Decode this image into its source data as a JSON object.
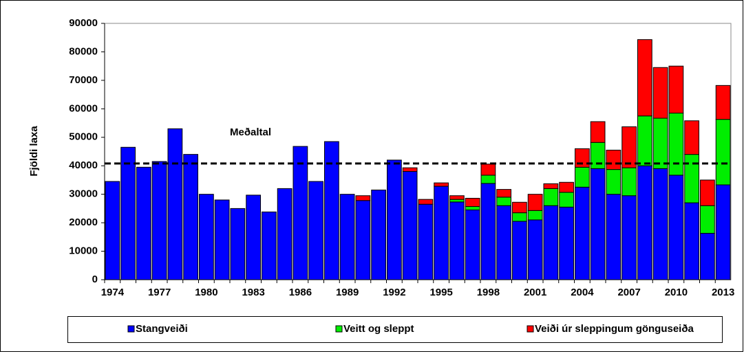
{
  "chart_data": {
    "type": "stacked_bar",
    "y_label": "Fjöldi  laxa",
    "categories": [
      "1974",
      null,
      null,
      "1977",
      null,
      null,
      "1980",
      null,
      null,
      "1983",
      null,
      null,
      "1986",
      null,
      null,
      "1989",
      null,
      null,
      "1992",
      null,
      null,
      "1995",
      null,
      null,
      "1998",
      null,
      null,
      "2001",
      null,
      null,
      "2004",
      null,
      null,
      "2007",
      null,
      null,
      "2010",
      null,
      null,
      "2013"
    ],
    "series": [
      {
        "name": "Stangveiði",
        "color": "#0000ff",
        "values": [
          34500,
          46500,
          39500,
          41500,
          53000,
          44000,
          30000,
          28000,
          25000,
          29700,
          23800,
          32000,
          46800,
          34500,
          48500,
          30000,
          27800,
          31500,
          42000,
          38000,
          26500,
          32800,
          27300,
          24500,
          33800,
          26000,
          20500,
          21000,
          26000,
          25500,
          32500,
          39000,
          30000,
          29500,
          40000,
          39000,
          36700,
          27000,
          16300,
          33300
        ]
      },
      {
        "name": "Veitt og sleppt",
        "color": "#00ee00",
        "values": [
          0,
          0,
          0,
          0,
          0,
          0,
          0,
          0,
          0,
          0,
          0,
          0,
          0,
          0,
          0,
          0,
          0,
          0,
          0,
          0,
          0,
          0,
          900,
          1200,
          2900,
          3000,
          3000,
          3300,
          6000,
          5200,
          7000,
          9200,
          8700,
          9800,
          17500,
          17700,
          21800,
          17000,
          9700,
          23000
        ]
      },
      {
        "name": "Veiði úr sleppingum gönguseiða",
        "color": "#ff0000",
        "values": [
          0,
          0,
          0,
          0,
          0,
          0,
          0,
          0,
          0,
          0,
          0,
          0,
          0,
          0,
          0,
          0,
          1700,
          0,
          0,
          1300,
          1700,
          1200,
          1300,
          2900,
          3900,
          2700,
          3700,
          5700,
          1700,
          3500,
          6500,
          7300,
          6800,
          14400,
          26800,
          17800,
          16500,
          11800,
          9000,
          11900
        ]
      }
    ],
    "ylim": [
      0,
      90000
    ],
    "yticks": [
      0,
      10000,
      20000,
      30000,
      40000,
      50000,
      60000,
      70000,
      80000,
      90000
    ],
    "annotations": [
      {
        "label": "Meðaltal",
        "value": 40800
      }
    ],
    "legend": "bottom"
  }
}
